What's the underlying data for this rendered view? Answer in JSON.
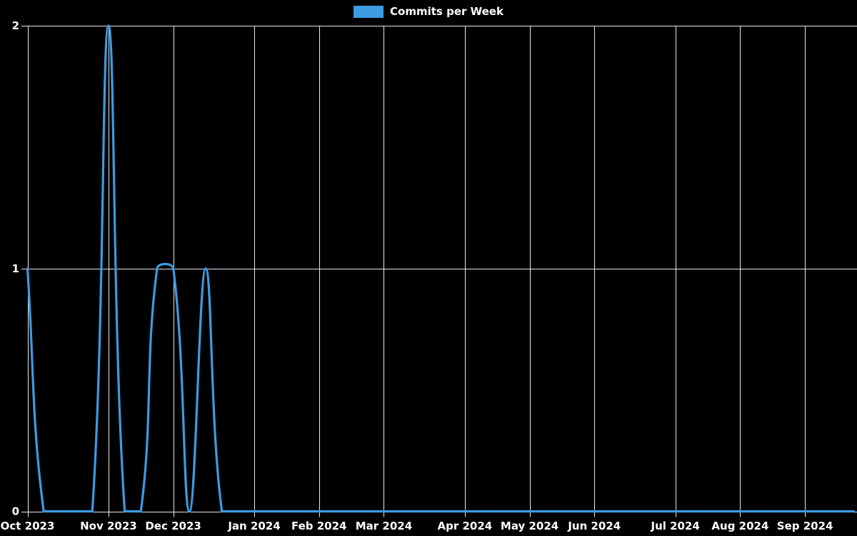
{
  "legend": {
    "items": [
      {
        "label": "Commits per Week",
        "color": "#3b9ce2"
      }
    ]
  },
  "chart_data": {
    "type": "line",
    "title": "",
    "xlabel": "",
    "ylabel": "",
    "legend_position": "top-center",
    "grid": true,
    "x_unit": "week",
    "num_points": 52,
    "series": [
      {
        "name": "Commits per Week",
        "color": "#3b9ce2",
        "values": [
          1,
          0,
          0,
          0,
          0,
          2,
          0,
          0,
          1,
          1,
          0,
          1,
          0,
          0,
          0,
          0,
          0,
          0,
          0,
          0,
          0,
          0,
          0,
          0,
          0,
          0,
          0,
          0,
          0,
          0,
          0,
          0,
          0,
          0,
          0,
          0,
          0,
          0,
          0,
          0,
          0,
          0,
          0,
          0,
          0,
          0,
          0,
          0,
          0,
          0,
          0,
          0
        ]
      }
    ],
    "x_ticks": [
      {
        "label": "Oct 2023",
        "index": 0
      },
      {
        "label": "Nov 2023",
        "index": 5
      },
      {
        "label": "Dec 2023",
        "index": 9
      },
      {
        "label": "Jan 2024",
        "index": 14
      },
      {
        "label": "Feb 2024",
        "index": 18
      },
      {
        "label": "Mar 2024",
        "index": 22
      },
      {
        "label": "Apr 2024",
        "index": 27
      },
      {
        "label": "May 2024",
        "index": 31
      },
      {
        "label": "Jun 2024",
        "index": 35
      },
      {
        "label": "Jul 2024",
        "index": 40
      },
      {
        "label": "Aug 2024",
        "index": 44
      },
      {
        "label": "Sep 2024",
        "index": 48
      }
    ],
    "y_ticks": [
      "0",
      "1",
      "2"
    ],
    "ylim": [
      0,
      2
    ],
    "colors": {
      "background": "#000000",
      "grid": "#e8e8e8",
      "text": "#ffffff",
      "line": "#3b9ce2"
    }
  }
}
